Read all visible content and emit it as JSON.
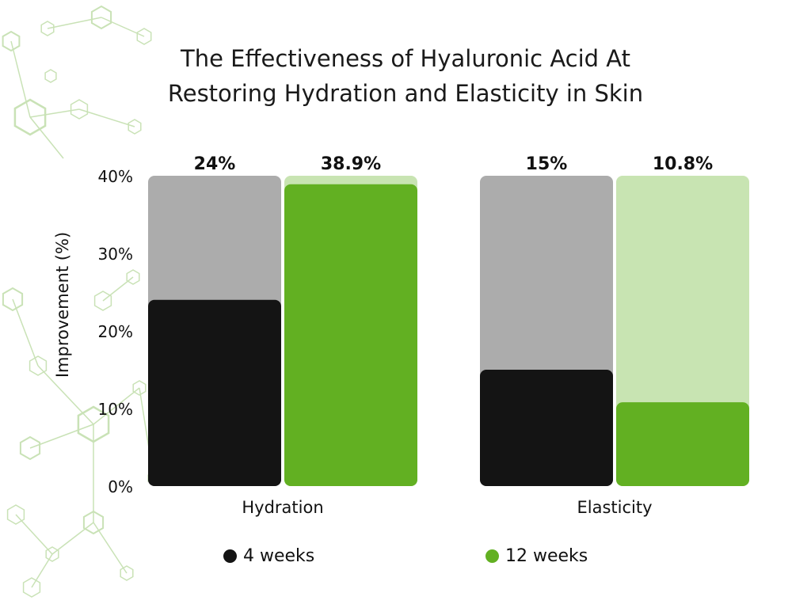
{
  "title_lines": [
    "The Effectiveness of Hyaluronic Acid At",
    "Restoring Hydration and Elasticity in Skin"
  ],
  "colors": {
    "week4_fill": "#141414",
    "week4_track": "#acacac",
    "week12_fill": "#62b022",
    "week12_track": "#c8e4b2",
    "decoration": "#c9e2b6"
  },
  "chart_data": {
    "type": "bar",
    "title": "The Effectiveness of Hyaluronic Acid At Restoring Hydration and Elasticity in Skin",
    "ylabel": "Improvement (%)",
    "xlabel": "",
    "ylim": [
      0,
      40
    ],
    "yticks": [
      {
        "value": 0,
        "label": "0%"
      },
      {
        "value": 10,
        "label": "10%"
      },
      {
        "value": 20,
        "label": "20%"
      },
      {
        "value": 30,
        "label": "30%"
      },
      {
        "value": 40,
        "label": "40%"
      }
    ],
    "grid": false,
    "legend_position": "bottom",
    "categories": [
      "Hydration",
      "Elasticity"
    ],
    "series": [
      {
        "name": "4 weeks",
        "values": [
          24,
          15
        ],
        "labels": [
          "24%",
          "15%"
        ]
      },
      {
        "name": "12 weeks",
        "values": [
          38.9,
          10.8
        ],
        "labels": [
          "38.9%",
          "10.8%"
        ]
      }
    ]
  }
}
